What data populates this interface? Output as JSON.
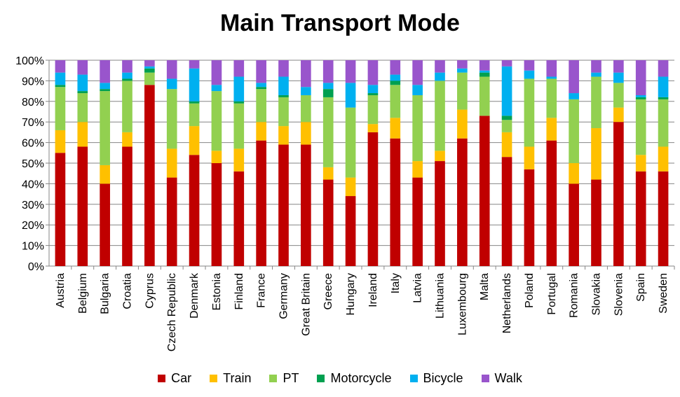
{
  "chart_data": {
    "type": "bar",
    "stacked": true,
    "title": "Main Transport Mode",
    "xlabel": "",
    "ylabel": "",
    "ylim": [
      0,
      100
    ],
    "y_ticks": [
      "0%",
      "10%",
      "20%",
      "30%",
      "40%",
      "50%",
      "60%",
      "70%",
      "80%",
      "90%",
      "100%"
    ],
    "grid": true,
    "legend_position": "bottom",
    "categories": [
      "Austria",
      "Belgium",
      "Bulgaria",
      "Croatia",
      "Cyprus",
      "Czech Republic",
      "Denmark",
      "Estonia",
      "Finland",
      "France",
      "Germany",
      "Great Britain",
      "Greece",
      "Hungary",
      "Ireland",
      "Italy",
      "Latvia",
      "Lithuania",
      "Luxembourg",
      "Malta",
      "Netherlands",
      "Poland",
      "Portugal",
      "Romania",
      "Slovakia",
      "Slovenia",
      "Spain",
      "Sweden"
    ],
    "series": [
      {
        "name": "Car",
        "color": "#c00000",
        "values": [
          55,
          58,
          40,
          58,
          88,
          43,
          54,
          50,
          46,
          61,
          59,
          59,
          42,
          34,
          65,
          62,
          43,
          51,
          62,
          73,
          53,
          47,
          61,
          40,
          42,
          70,
          46,
          46
        ]
      },
      {
        "name": "Train",
        "color": "#ffc000",
        "values": [
          11,
          12,
          9,
          7,
          0,
          14,
          14,
          6,
          11,
          9,
          9,
          11,
          6,
          9,
          4,
          10,
          8,
          5,
          14,
          0,
          12,
          11,
          11,
          10,
          25,
          7,
          8,
          12
        ]
      },
      {
        "name": "PT",
        "color": "#92d050",
        "values": [
          21,
          14,
          36,
          25,
          6,
          29,
          11,
          29,
          22,
          16,
          14,
          13,
          34,
          34,
          14,
          16,
          32,
          34,
          18,
          19,
          6,
          33,
          19,
          31,
          25,
          12,
          27,
          23
        ]
      },
      {
        "name": "Motorcycle",
        "color": "#00a050",
        "values": [
          1,
          1,
          1,
          1,
          2,
          0,
          1,
          0,
          1,
          1,
          1,
          0,
          4,
          0,
          1,
          2,
          0,
          0,
          0,
          2,
          2,
          0,
          0,
          0,
          0,
          0,
          1,
          1
        ]
      },
      {
        "name": "Bicycle",
        "color": "#00b0f0",
        "values": [
          6,
          8,
          3,
          3,
          1,
          5,
          16,
          3,
          12,
          2,
          9,
          4,
          3,
          12,
          4,
          3,
          5,
          4,
          2,
          1,
          24,
          4,
          1,
          3,
          2,
          5,
          1,
          10
        ]
      },
      {
        "name": "Walk",
        "color": "#9955cc",
        "values": [
          6,
          7,
          11,
          6,
          3,
          9,
          4,
          12,
          8,
          11,
          8,
          13,
          11,
          11,
          12,
          7,
          12,
          6,
          4,
          5,
          3,
          5,
          8,
          16,
          6,
          6,
          17,
          8
        ]
      }
    ]
  }
}
